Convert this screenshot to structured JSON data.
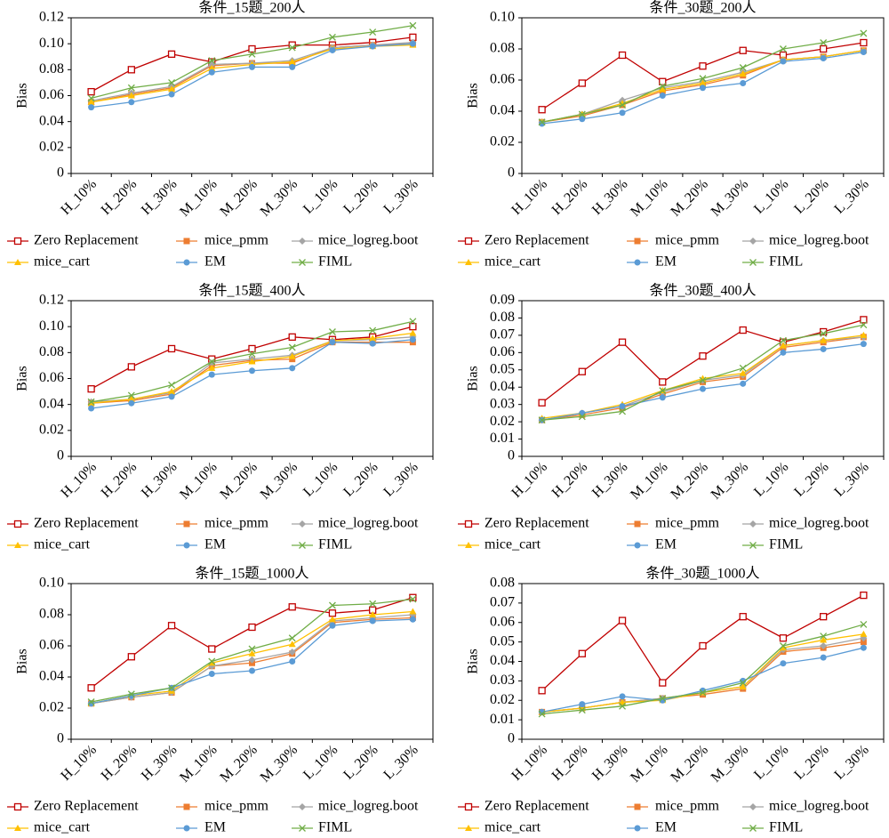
{
  "chart_data": [
    {
      "type": "line",
      "title": "条件_15题_200人",
      "ylabel": "Bias",
      "categories": [
        "H_10%",
        "H_20%",
        "H_30%",
        "M_10%",
        "M_20%",
        "M_30%",
        "L_10%",
        "L_20%",
        "L_30%"
      ],
      "ylim": [
        0,
        0.12
      ],
      "yticks": [
        0,
        0.02,
        0.04,
        0.06,
        0.08,
        {
          "value": 0.1,
          "label": "0.10"
        },
        0.12
      ],
      "series": [
        {
          "name": "Zero Replacement",
          "color": "#c00000",
          "marker": "square-open",
          "values": [
            0.063,
            0.08,
            0.092,
            0.086,
            0.096,
            0.099,
            0.099,
            0.101,
            0.105
          ]
        },
        {
          "name": "mice_pmm",
          "color": "#ed7d31",
          "marker": "square",
          "values": [
            0.055,
            0.061,
            0.066,
            0.083,
            0.085,
            0.085,
            0.097,
            0.099,
            0.1
          ]
        },
        {
          "name": "mice_logreg.boot",
          "color": "#a5a5a5",
          "marker": "diamond",
          "values": [
            0.056,
            0.062,
            0.067,
            0.084,
            0.085,
            0.087,
            0.097,
            0.099,
            0.101
          ]
        },
        {
          "name": "mice_cart",
          "color": "#ffc000",
          "marker": "triangle",
          "values": [
            0.055,
            0.06,
            0.065,
            0.081,
            0.084,
            0.086,
            0.096,
            0.098,
            0.099
          ]
        },
        {
          "name": "EM",
          "color": "#5b9bd5",
          "marker": "circle",
          "values": [
            0.051,
            0.055,
            0.061,
            0.078,
            0.082,
            0.082,
            0.095,
            0.098,
            0.1
          ]
        },
        {
          "name": "FIML",
          "color": "#70ad47",
          "marker": "x",
          "values": [
            0.058,
            0.066,
            0.07,
            0.087,
            0.092,
            0.097,
            0.105,
            0.109,
            0.114
          ]
        }
      ]
    },
    {
      "type": "line",
      "title": "条件_30题_200人",
      "ylabel": "Bias",
      "categories": [
        "H_10%",
        "H_20%",
        "H_30%",
        "M_10%",
        "M_20%",
        "M_30%",
        "L_10%",
        "L_20%",
        "L_30%"
      ],
      "ylim": [
        0,
        0.1
      ],
      "yticks": [
        0,
        0.02,
        0.04,
        0.06,
        0.08,
        {
          "value": 0.1,
          "label": "0.10"
        }
      ],
      "series": [
        {
          "name": "Zero Replacement",
          "color": "#c00000",
          "marker": "square-open",
          "values": [
            0.041,
            0.058,
            0.076,
            0.059,
            0.069,
            0.079,
            0.076,
            0.08,
            0.084
          ]
        },
        {
          "name": "mice_pmm",
          "color": "#ed7d31",
          "marker": "square",
          "values": [
            0.033,
            0.037,
            0.044,
            0.053,
            0.057,
            0.063,
            0.073,
            0.075,
            0.079
          ]
        },
        {
          "name": "mice_logreg.boot",
          "color": "#a5a5a5",
          "marker": "diamond",
          "values": [
            0.033,
            0.038,
            0.047,
            0.055,
            0.059,
            0.065,
            0.073,
            0.075,
            0.079
          ]
        },
        {
          "name": "mice_cart",
          "color": "#ffc000",
          "marker": "triangle",
          "values": [
            0.033,
            0.038,
            0.045,
            0.054,
            0.058,
            0.064,
            0.073,
            0.075,
            0.079
          ]
        },
        {
          "name": "EM",
          "color": "#5b9bd5",
          "marker": "circle",
          "values": [
            0.032,
            0.035,
            0.039,
            0.05,
            0.055,
            0.058,
            0.072,
            0.074,
            0.078
          ]
        },
        {
          "name": "FIML",
          "color": "#70ad47",
          "marker": "x",
          "values": [
            0.033,
            0.038,
            0.044,
            0.056,
            0.061,
            0.068,
            0.08,
            0.084,
            0.09
          ]
        }
      ]
    },
    {
      "type": "line",
      "title": "条件_15题_400人",
      "ylabel": "Bias",
      "categories": [
        "H_10%",
        "H_20%",
        "H_30%",
        "M_10%",
        "M_20%",
        "M_30%",
        "L_10%",
        "L_20%",
        "L_30%"
      ],
      "ylim": [
        0,
        0.12
      ],
      "yticks": [
        0,
        0.02,
        0.04,
        0.06,
        0.08,
        {
          "value": 0.1,
          "label": "0.10"
        },
        0.12
      ],
      "series": [
        {
          "name": "Zero Replacement",
          "color": "#c00000",
          "marker": "square-open",
          "values": [
            0.052,
            0.069,
            0.083,
            0.075,
            0.083,
            0.092,
            0.09,
            0.092,
            0.1
          ]
        },
        {
          "name": "mice_pmm",
          "color": "#ed7d31",
          "marker": "square",
          "values": [
            0.041,
            0.043,
            0.048,
            0.07,
            0.074,
            0.075,
            0.088,
            0.088,
            0.088
          ]
        },
        {
          "name": "mice_logreg.boot",
          "color": "#a5a5a5",
          "marker": "diamond",
          "values": [
            0.042,
            0.044,
            0.049,
            0.072,
            0.075,
            0.078,
            0.089,
            0.09,
            0.092
          ]
        },
        {
          "name": "mice_cart",
          "color": "#ffc000",
          "marker": "triangle",
          "values": [
            0.041,
            0.044,
            0.05,
            0.068,
            0.073,
            0.077,
            0.089,
            0.091,
            0.095
          ]
        },
        {
          "name": "EM",
          "color": "#5b9bd5",
          "marker": "circle",
          "values": [
            0.037,
            0.041,
            0.046,
            0.063,
            0.066,
            0.068,
            0.088,
            0.087,
            0.09
          ]
        },
        {
          "name": "FIML",
          "color": "#70ad47",
          "marker": "x",
          "values": [
            0.042,
            0.047,
            0.055,
            0.073,
            0.079,
            0.084,
            0.096,
            0.097,
            0.104
          ]
        }
      ]
    },
    {
      "type": "line",
      "title": "条件_30题_400人",
      "ylabel": "Bias",
      "categories": [
        "H_10%",
        "H_20%",
        "H_30%",
        "M_10%",
        "M_20%",
        "M_30%",
        "L_10%",
        "L_20%",
        "L_30%"
      ],
      "ylim": [
        0,
        0.09
      ],
      "yticks": [
        0,
        0.01,
        0.02,
        0.03,
        0.04,
        0.05,
        0.06,
        0.07,
        0.08,
        0.09
      ],
      "series": [
        {
          "name": "Zero Replacement",
          "color": "#c00000",
          "marker": "square-open",
          "values": [
            0.031,
            0.049,
            0.066,
            0.043,
            0.058,
            0.073,
            0.066,
            0.072,
            0.079
          ]
        },
        {
          "name": "mice_pmm",
          "color": "#ed7d31",
          "marker": "square",
          "values": [
            0.021,
            0.024,
            0.028,
            0.036,
            0.043,
            0.046,
            0.063,
            0.066,
            0.069
          ]
        },
        {
          "name": "mice_logreg.boot",
          "color": "#a5a5a5",
          "marker": "diamond",
          "values": [
            0.021,
            0.025,
            0.029,
            0.037,
            0.044,
            0.047,
            0.064,
            0.067,
            0.069
          ]
        },
        {
          "name": "mice_cart",
          "color": "#ffc000",
          "marker": "triangle",
          "values": [
            0.022,
            0.025,
            0.03,
            0.038,
            0.045,
            0.048,
            0.064,
            0.067,
            0.07
          ]
        },
        {
          "name": "EM",
          "color": "#5b9bd5",
          "marker": "circle",
          "values": [
            0.021,
            0.025,
            0.029,
            0.034,
            0.039,
            0.042,
            0.06,
            0.062,
            0.065
          ]
        },
        {
          "name": "FIML",
          "color": "#70ad47",
          "marker": "x",
          "values": [
            0.021,
            0.023,
            0.026,
            0.038,
            0.044,
            0.051,
            0.067,
            0.071,
            0.076
          ]
        }
      ]
    },
    {
      "type": "line",
      "title": "条件_15题_1000人",
      "ylabel": "Bias",
      "categories": [
        "H_10%",
        "H_20%",
        "H_30%",
        "M_10%",
        "M_20%",
        "M_30%",
        "L_10%",
        "L_20%",
        "L_30%"
      ],
      "ylim": [
        0,
        0.1
      ],
      "yticks": [
        0,
        0.02,
        0.04,
        0.06,
        0.08,
        {
          "value": 0.1,
          "label": "0.10"
        }
      ],
      "series": [
        {
          "name": "Zero Replacement",
          "color": "#c00000",
          "marker": "square-open",
          "values": [
            0.033,
            0.053,
            0.073,
            0.058,
            0.072,
            0.085,
            0.081,
            0.083,
            0.091
          ]
        },
        {
          "name": "mice_pmm",
          "color": "#ed7d31",
          "marker": "square",
          "values": [
            0.023,
            0.027,
            0.03,
            0.047,
            0.049,
            0.055,
            0.075,
            0.077,
            0.078
          ]
        },
        {
          "name": "mice_logreg.boot",
          "color": "#a5a5a5",
          "marker": "diamond",
          "values": [
            0.023,
            0.027,
            0.03,
            0.047,
            0.051,
            0.056,
            0.076,
            0.078,
            0.08
          ]
        },
        {
          "name": "mice_cart",
          "color": "#ffc000",
          "marker": "triangle",
          "values": [
            0.023,
            0.028,
            0.031,
            0.049,
            0.055,
            0.061,
            0.077,
            0.08,
            0.082
          ]
        },
        {
          "name": "EM",
          "color": "#5b9bd5",
          "marker": "circle",
          "values": [
            0.023,
            0.028,
            0.033,
            0.042,
            0.044,
            0.05,
            0.073,
            0.076,
            0.077
          ]
        },
        {
          "name": "FIML",
          "color": "#70ad47",
          "marker": "x",
          "values": [
            0.024,
            0.029,
            0.033,
            0.05,
            0.058,
            0.065,
            0.086,
            0.087,
            0.09
          ]
        }
      ]
    },
    {
      "type": "line",
      "title": "条件_30题_1000人",
      "ylabel": "Bias",
      "categories": [
        "H_10%",
        "H_20%",
        "H_30%",
        "M_10%",
        "M_20%",
        "M_30%",
        "L_10%",
        "L_20%",
        "L_30%"
      ],
      "ylim": [
        0,
        0.08
      ],
      "yticks": [
        0,
        0.01,
        0.02,
        0.03,
        0.04,
        0.05,
        0.06,
        0.07,
        0.08
      ],
      "series": [
        {
          "name": "Zero Replacement",
          "color": "#c00000",
          "marker": "square-open",
          "values": [
            0.025,
            0.044,
            0.061,
            0.029,
            0.048,
            0.063,
            0.052,
            0.063,
            0.074
          ]
        },
        {
          "name": "mice_pmm",
          "color": "#ed7d31",
          "marker": "square",
          "values": [
            0.014,
            0.016,
            0.019,
            0.021,
            0.023,
            0.026,
            0.045,
            0.047,
            0.05
          ]
        },
        {
          "name": "mice_logreg.boot",
          "color": "#a5a5a5",
          "marker": "diamond",
          "values": [
            0.014,
            0.016,
            0.019,
            0.021,
            0.024,
            0.027,
            0.046,
            0.048,
            0.052
          ]
        },
        {
          "name": "mice_cart",
          "color": "#ffc000",
          "marker": "triangle",
          "values": [
            0.014,
            0.016,
            0.019,
            0.02,
            0.024,
            0.027,
            0.047,
            0.051,
            0.054
          ]
        },
        {
          "name": "EM",
          "color": "#5b9bd5",
          "marker": "circle",
          "values": [
            0.014,
            0.018,
            0.022,
            0.02,
            0.025,
            0.03,
            0.039,
            0.042,
            0.047
          ]
        },
        {
          "name": "FIML",
          "color": "#70ad47",
          "marker": "x",
          "values": [
            0.013,
            0.015,
            0.017,
            0.021,
            0.024,
            0.029,
            0.048,
            0.053,
            0.059
          ]
        }
      ]
    }
  ]
}
